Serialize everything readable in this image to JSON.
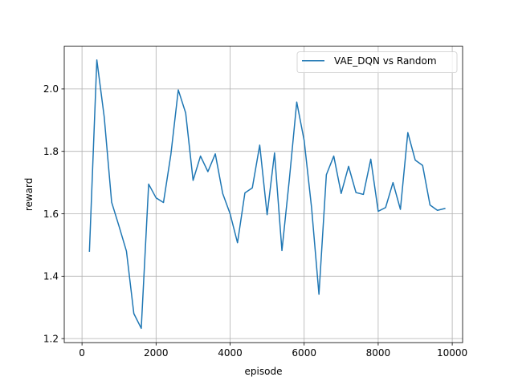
{
  "chart_data": {
    "type": "line",
    "title": "",
    "xlabel": "episode",
    "ylabel": "reward",
    "xlim": [
      -480,
      10280
    ],
    "ylim": [
      1.187,
      2.137
    ],
    "xticks": [
      0,
      2000,
      4000,
      6000,
      8000,
      10000
    ],
    "yticks": [
      1.2,
      1.4,
      1.6,
      1.8,
      2.0
    ],
    "xtick_labels": [
      "0",
      "2000",
      "4000",
      "6000",
      "8000",
      "10000"
    ],
    "ytick_labels": [
      "1.2",
      "1.4",
      "1.6",
      "1.8",
      "2.0"
    ],
    "grid": true,
    "legend_position": "top-right",
    "series": [
      {
        "name": "VAE_DQN vs Random",
        "color": "#1f77b4",
        "x": [
          200,
          400,
          600,
          800,
          1000,
          1200,
          1400,
          1600,
          1800,
          2000,
          2200,
          2400,
          2600,
          2800,
          3000,
          3200,
          3400,
          3600,
          3800,
          4000,
          4200,
          4400,
          4600,
          4800,
          5000,
          5200,
          5400,
          5600,
          5800,
          6000,
          6200,
          6400,
          6600,
          6800,
          7000,
          7200,
          7400,
          7600,
          7800,
          8000,
          8200,
          8400,
          8600,
          8800,
          9000,
          9200,
          9400,
          9600,
          9800
        ],
        "y": [
          1.48,
          2.093,
          1.91,
          1.637,
          1.56,
          1.48,
          1.28,
          1.233,
          1.695,
          1.651,
          1.636,
          1.79,
          1.997,
          1.923,
          1.707,
          1.785,
          1.735,
          1.792,
          1.665,
          1.6,
          1.507,
          1.667,
          1.683,
          1.82,
          1.597,
          1.795,
          1.482,
          1.71,
          1.958,
          1.835,
          1.62,
          1.342,
          1.725,
          1.785,
          1.665,
          1.752,
          1.668,
          1.662,
          1.775,
          1.608,
          1.62,
          1.7,
          1.614,
          1.86,
          1.772,
          1.755,
          1.628,
          1.611,
          1.617
        ]
      }
    ]
  }
}
